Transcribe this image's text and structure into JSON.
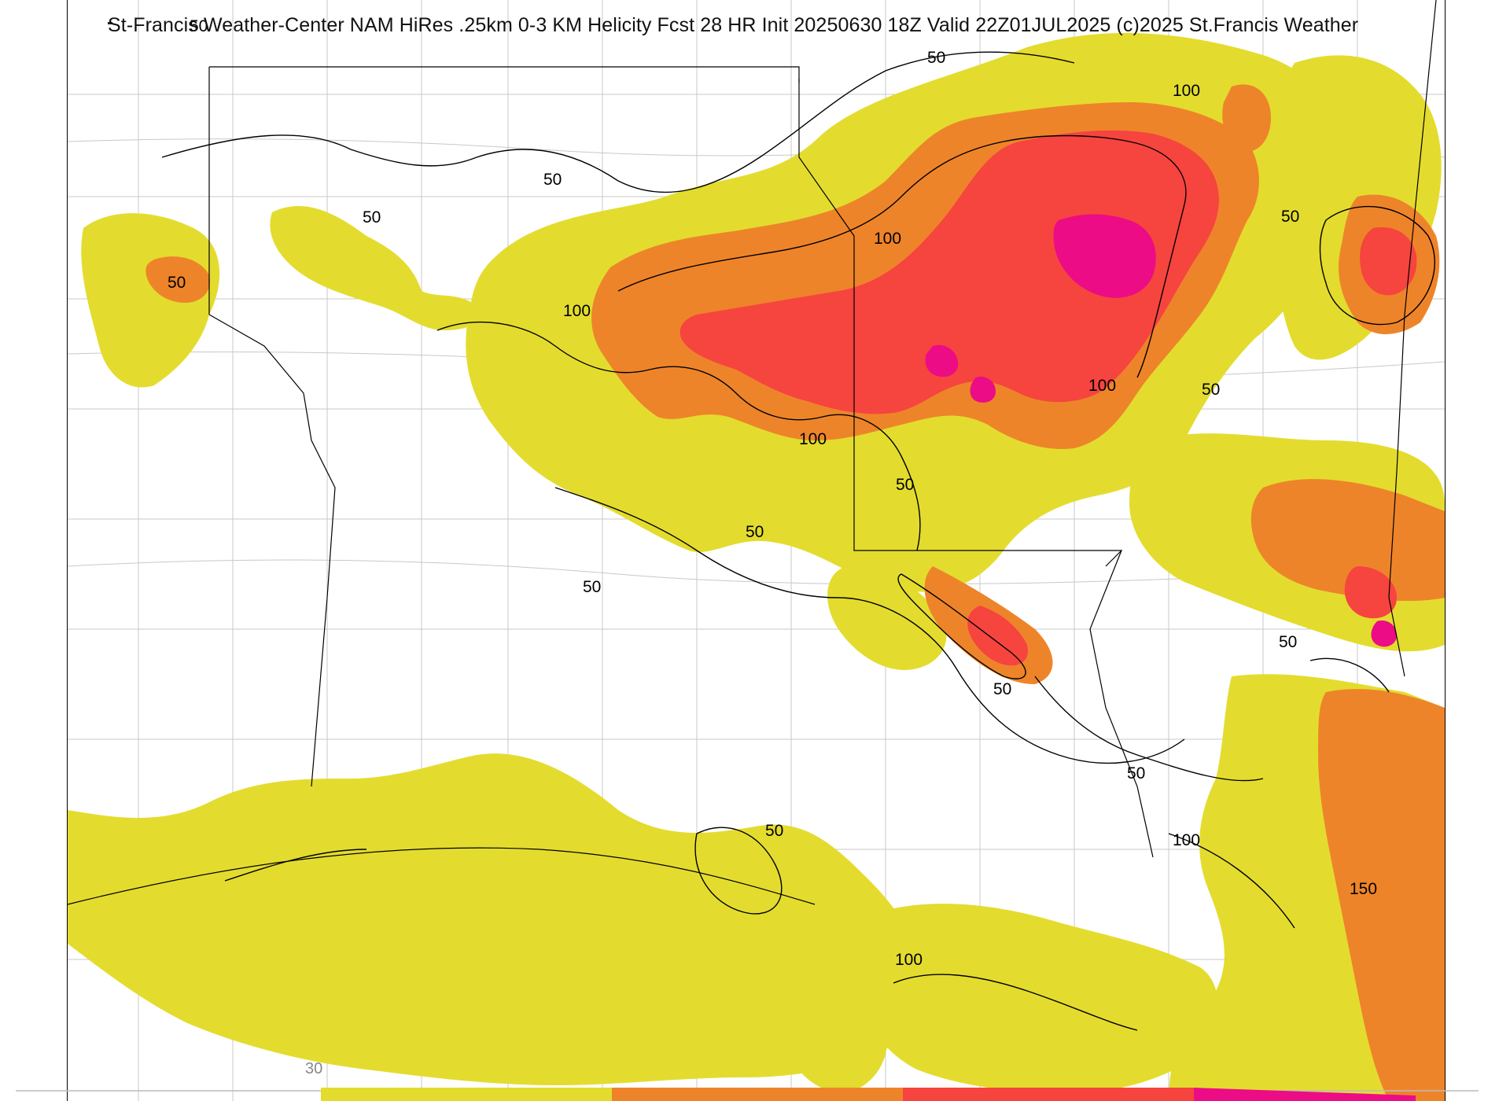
{
  "title": "St-Francis Weather-Center NAM HiRes .25km 0-3 KM Helicity Fcst 28 HR Init 20250630 18Z  Valid 22Z01JUL2025    (c)2025 St.Francis Weather",
  "colors": {
    "band_30": "#e3dc2e",
    "band_100": "#ee842a",
    "band_150": "#f6443f",
    "band_200": "#ec0c85",
    "contour": "#000000",
    "boundary": "#000000",
    "county": "#bdbdbd"
  },
  "legend": {
    "first_tick": "30",
    "bands": [
      "#e3dc2e",
      "#ee842a",
      "#f6443f",
      "#ec0c85"
    ]
  },
  "contour_labels": [
    {
      "id": "c1",
      "text": "50"
    },
    {
      "id": "c2",
      "text": "50"
    },
    {
      "id": "c3",
      "text": "50"
    },
    {
      "id": "c4",
      "text": "50"
    },
    {
      "id": "c5",
      "text": "50"
    },
    {
      "id": "c6",
      "text": "100"
    },
    {
      "id": "c7",
      "text": "100"
    },
    {
      "id": "c8",
      "text": "100"
    },
    {
      "id": "c9",
      "text": "100"
    },
    {
      "id": "c10",
      "text": "100"
    },
    {
      "id": "c11",
      "text": "50"
    },
    {
      "id": "c12",
      "text": "50"
    },
    {
      "id": "c13",
      "text": "50"
    },
    {
      "id": "c14",
      "text": "50"
    },
    {
      "id": "c15",
      "text": "50"
    },
    {
      "id": "c16",
      "text": "50"
    },
    {
      "id": "c17",
      "text": "50"
    },
    {
      "id": "c18",
      "text": "50"
    },
    {
      "id": "c19",
      "text": "100"
    },
    {
      "id": "c20",
      "text": "150"
    },
    {
      "id": "c21",
      "text": "50"
    },
    {
      "id": "c22",
      "text": "100"
    }
  ]
}
